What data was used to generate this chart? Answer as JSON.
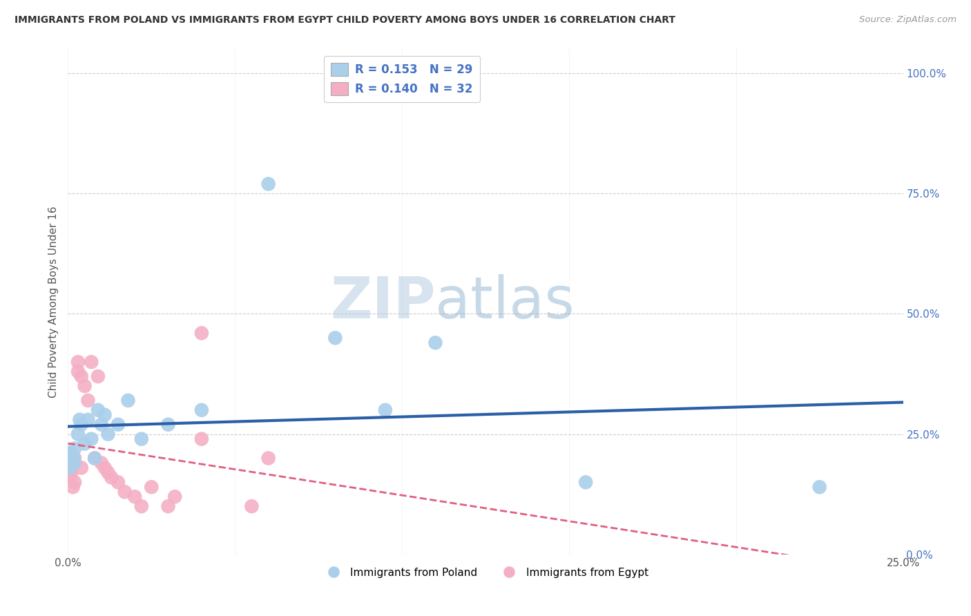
{
  "title": "IMMIGRANTS FROM POLAND VS IMMIGRANTS FROM EGYPT CHILD POVERTY AMONG BOYS UNDER 16 CORRELATION CHART",
  "source": "Source: ZipAtlas.com",
  "ylabel": "Child Poverty Among Boys Under 16",
  "xlim": [
    0.0,
    0.25
  ],
  "ylim": [
    0.0,
    1.05
  ],
  "yticks": [
    0.0,
    0.25,
    0.5,
    0.75,
    1.0
  ],
  "right_ytick_labels": [
    "0.0%",
    "25.0%",
    "50.0%",
    "75.0%",
    "100.0%"
  ],
  "xticks": [
    0.0,
    0.05,
    0.1,
    0.15,
    0.2,
    0.25
  ],
  "xtick_labels": [
    "0.0%",
    "",
    "",
    "",
    "",
    "25.0%"
  ],
  "poland_R": 0.153,
  "poland_N": 29,
  "egypt_R": 0.14,
  "egypt_N": 32,
  "poland_color": "#aacfea",
  "egypt_color": "#f4afc5",
  "poland_line_color": "#2b5fa8",
  "egypt_line_color": "#e06080",
  "watermark_zip": "ZIP",
  "watermark_atlas": "atlas",
  "background_color": "#ffffff",
  "grid_color": "#cccccc",
  "poland_x": [
    0.0003,
    0.0005,
    0.001,
    0.001,
    0.0015,
    0.002,
    0.002,
    0.003,
    0.0035,
    0.004,
    0.005,
    0.006,
    0.007,
    0.008,
    0.009,
    0.01,
    0.011,
    0.012,
    0.015,
    0.018,
    0.022,
    0.03,
    0.04,
    0.06,
    0.08,
    0.095,
    0.11,
    0.155,
    0.225
  ],
  "poland_y": [
    0.2,
    0.18,
    0.19,
    0.21,
    0.2,
    0.22,
    0.19,
    0.25,
    0.28,
    0.27,
    0.23,
    0.28,
    0.24,
    0.2,
    0.3,
    0.27,
    0.29,
    0.25,
    0.27,
    0.32,
    0.24,
    0.27,
    0.3,
    0.77,
    0.45,
    0.3,
    0.44,
    0.15,
    0.14
  ],
  "egypt_x": [
    0.0001,
    0.0003,
    0.0005,
    0.001,
    0.001,
    0.0015,
    0.002,
    0.002,
    0.003,
    0.003,
    0.004,
    0.004,
    0.005,
    0.006,
    0.007,
    0.008,
    0.009,
    0.01,
    0.011,
    0.012,
    0.013,
    0.015,
    0.017,
    0.02,
    0.022,
    0.025,
    0.03,
    0.032,
    0.04,
    0.04,
    0.055,
    0.06
  ],
  "egypt_y": [
    0.18,
    0.17,
    0.16,
    0.19,
    0.17,
    0.14,
    0.2,
    0.15,
    0.4,
    0.38,
    0.37,
    0.18,
    0.35,
    0.32,
    0.4,
    0.2,
    0.37,
    0.19,
    0.18,
    0.17,
    0.16,
    0.15,
    0.13,
    0.12,
    0.1,
    0.14,
    0.1,
    0.12,
    0.46,
    0.24,
    0.1,
    0.2
  ]
}
